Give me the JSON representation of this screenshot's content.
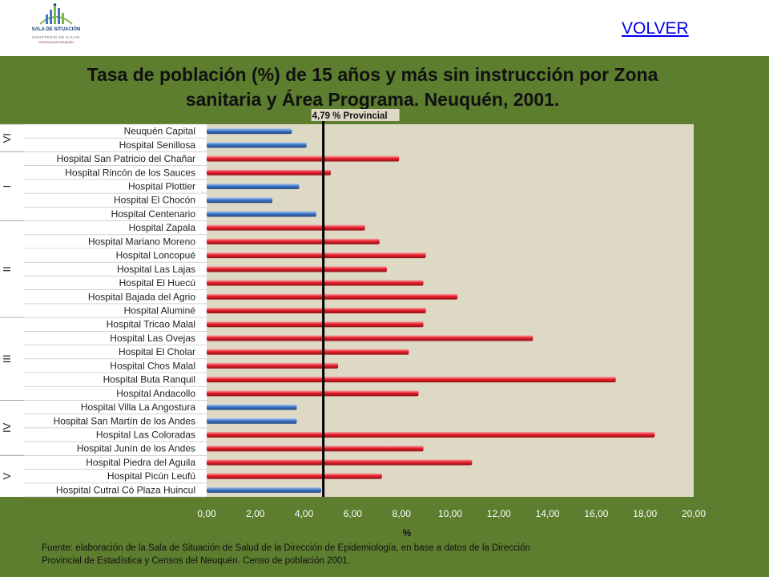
{
  "header": {
    "logo_title": "SALA DE SITUACIÓN",
    "logo_subtitle": "MINISTERIO DE SALUD",
    "logo_subtitle2": "PROVINCIA DE NEUQUÉN",
    "volver_label": "VOLVER",
    "link_color": "#0000ee"
  },
  "colors": {
    "panel_bg": "#5d7d2f",
    "plot_bg": "#ddd9c4",
    "bar_red": "#e8202a",
    "bar_blue": "#3f78c8",
    "reference_line": "#000000"
  },
  "chart_data": {
    "type": "bar",
    "orientation": "horizontal",
    "title": "Tasa de población (%) de 15 años y más sin instrucción por Zona sanitaria y Área Programa. Neuquén, 2001.",
    "xlabel": "%",
    "ylabel": "",
    "xlim": [
      0,
      20
    ],
    "x_ticks": [
      "0,00",
      "2,00",
      "4,00",
      "6,00",
      "8,00",
      "10,00",
      "12,00",
      "14,00",
      "16,00",
      "18,00",
      "20,00"
    ],
    "grid": false,
    "reference_line": {
      "value": 4.79,
      "label": "4,79 % Provincial"
    },
    "categories": [
      "Neuquén Capital",
      "Hospital Senillosa",
      "Hospital San Patricio del Chañar",
      "Hospital Rincón de los Sauces",
      "Hospital Plottier",
      "Hospital El Chocón",
      "Hospital Centenario",
      "Hospital Zapala",
      "Hospital Mariano Moreno",
      "Hospital Loncopué",
      "Hospital Las Lajas",
      "Hospital El Huecú",
      "Hospital Bajada del Agrio",
      "Hospital Aluminé",
      "Hospital Tricao Malal",
      "Hospital Las Ovejas",
      "Hospital El Cholar",
      "Hospital Chos Malal",
      "Hospital Buta Ranquil",
      "Hospital Andacollo",
      "Hospital Villa La Angostura",
      "Hospital San Martín de los Andes",
      "Hospital Las Coloradas",
      "Hospital Junín de los Andes",
      "Hospital Piedra del Aguila",
      "Hospital Picún Leufú",
      "Hospital Cutral Có Plaza Huincul"
    ],
    "values": [
      3.5,
      4.1,
      7.9,
      5.1,
      3.8,
      2.7,
      4.5,
      6.5,
      7.1,
      9.0,
      7.4,
      8.9,
      10.3,
      9.0,
      8.9,
      13.4,
      8.3,
      5.4,
      16.8,
      8.7,
      3.7,
      3.7,
      18.4,
      8.9,
      10.9,
      7.2,
      4.7
    ],
    "bar_colors": [
      "blue",
      "blue",
      "red",
      "red",
      "blue",
      "blue",
      "blue",
      "red",
      "red",
      "red",
      "red",
      "red",
      "red",
      "red",
      "red",
      "red",
      "red",
      "red",
      "red",
      "red",
      "blue",
      "blue",
      "red",
      "red",
      "red",
      "red",
      "blue"
    ],
    "zones": [
      {
        "label": "VI",
        "rows": [
          0,
          1
        ]
      },
      {
        "label": "I",
        "rows": [
          2,
          6
        ]
      },
      {
        "label": "II",
        "rows": [
          7,
          13
        ]
      },
      {
        "label": "III",
        "rows": [
          14,
          19
        ]
      },
      {
        "label": "IV",
        "rows": [
          20,
          23
        ]
      },
      {
        "label": "V",
        "rows": [
          24,
          26
        ]
      }
    ]
  },
  "footer": {
    "source": "Fuente: elaboración de la Sala de Situación de Salud de la Dirección de Epidemiología,  en base a datos de la Dirección\nProvincial de Estadística  y Censos del Neuquén. Censo de población 2001."
  }
}
